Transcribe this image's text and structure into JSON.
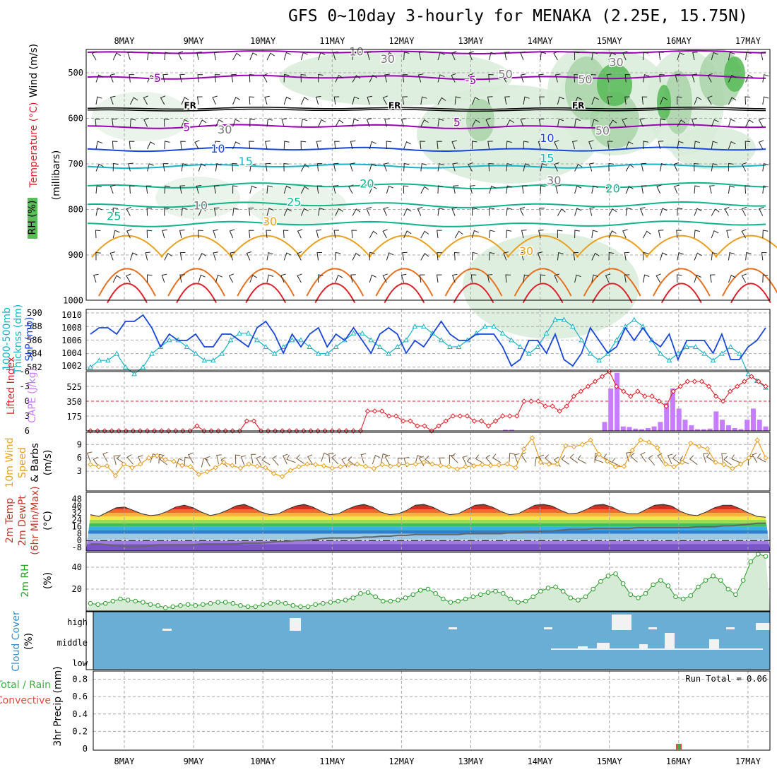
{
  "title": "GFS 0~10day 3-hourly for MENAKA (2.25E, 15.75N)",
  "days": [
    "8MAY",
    "9MAY",
    "10MAY",
    "11MAY",
    "12MAY",
    "13MAY",
    "14MAY",
    "15MAY",
    "16MAY",
    "17MAY"
  ],
  "colors": {
    "purple": "#9900b3",
    "blue": "#1946d9",
    "cyan": "#17b3c6",
    "teal": "#10b38a",
    "orange": "#e8a020",
    "red": "#e0202a",
    "green": "#2a9d2a",
    "cloud": "#6aaed6"
  },
  "panels": {
    "upper": {
      "yaxis": "(millibars)",
      "ylabels": [
        "500",
        "600",
        "700",
        "800",
        "900",
        "1000"
      ],
      "side": [
        {
          "text": "Wind (m/s)",
          "color": "#000000"
        },
        {
          "text": "Temperature (°C)",
          "color": "#e0202a"
        },
        {
          "text": "RH (%)",
          "color": "#2a9d2a"
        }
      ],
      "contour_labels": [
        {
          "t": "-5",
          "p": 520,
          "d": 1.45,
          "c": "#9900b3"
        },
        {
          "t": "-5",
          "p": 525,
          "d": 6.0,
          "c": "#9900b3"
        },
        {
          "t": "5",
          "p": 628,
          "d": 1.9,
          "c": "#9900b3"
        },
        {
          "t": "5",
          "p": 617,
          "d": 5.8,
          "c": "#9900b3"
        },
        {
          "t": "10",
          "p": 675,
          "d": 2.35,
          "c": "#1946d9"
        },
        {
          "t": "10",
          "p": 652,
          "d": 7.1,
          "c": "#1946d9"
        },
        {
          "t": "15",
          "p": 703,
          "d": 2.75,
          "c": "#17b3c6"
        },
        {
          "t": "15",
          "p": 696,
          "d": 7.1,
          "c": "#17b3c6"
        },
        {
          "t": "20",
          "p": 752,
          "d": 4.5,
          "c": "#10b38a"
        },
        {
          "t": "20",
          "p": 763,
          "d": 8.05,
          "c": "#10b38a"
        },
        {
          "t": "25",
          "p": 792,
          "d": 3.45,
          "c": "#10b38a"
        },
        {
          "t": "25",
          "p": 823,
          "d": 0.85,
          "c": "#10b38a"
        },
        {
          "t": "30",
          "p": 835,
          "d": 3.1,
          "c": "#e8a020"
        },
        {
          "t": "30",
          "p": 900,
          "d": 6.8,
          "c": "#e8a020"
        },
        {
          "t": "FR",
          "p": 578,
          "d": 1.95,
          "c": "#000000"
        },
        {
          "t": "FR",
          "p": 578,
          "d": 4.9,
          "c": "#000000"
        },
        {
          "t": "FR",
          "p": 578,
          "d": 7.55,
          "c": "#000000"
        },
        {
          "t": "10",
          "p": 462,
          "d": 4.35,
          "c": "#777777"
        },
        {
          "t": "30",
          "p": 478,
          "d": 4.8,
          "c": "#777777"
        },
        {
          "t": "30",
          "p": 485,
          "d": 8.1,
          "c": "#777777"
        },
        {
          "t": "50",
          "p": 512,
          "d": 6.5,
          "c": "#777777"
        },
        {
          "t": "50",
          "p": 523,
          "d": 7.65,
          "c": "#777777"
        },
        {
          "t": "30",
          "p": 633,
          "d": 2.45,
          "c": "#777777"
        },
        {
          "t": "50",
          "p": 636,
          "d": 7.9,
          "c": "#777777"
        },
        {
          "t": "30",
          "p": 745,
          "d": 7.2,
          "c": "#777777"
        },
        {
          "t": "10",
          "p": 800,
          "d": 2.1,
          "c": "#777777"
        }
      ]
    },
    "thick": {
      "label1": "1000-500mb",
      "label2": "Thicknss (dm)",
      "label3": "SLP (mb)",
      "left_ticks": [
        "590",
        "588",
        "586",
        "584",
        "582"
      ],
      "right_ticks": [
        "1010",
        "1008",
        "1006",
        "1004",
        "1002"
      ]
    },
    "cape": {
      "label1": "Lifted Index",
      "label2": "CAPE (J/kg)",
      "left_ticks": [
        "-6",
        "-3",
        "0",
        "3",
        "6"
      ],
      "right_ticks": [
        "525",
        "350",
        "175"
      ]
    },
    "wind": {
      "label1": "10m Wind",
      "label2": "Speed",
      "label3": "& Barbs",
      "label4": "(m/s)",
      "ticks": [
        "9",
        "6",
        "3"
      ]
    },
    "temp": {
      "label1": "2m Temp",
      "label2": "2m DewPt",
      "label3": "(6hr Min/Max)",
      "label4": "(°C)",
      "ticks": [
        "48",
        "40",
        "32",
        "24",
        "16",
        "8",
        "0",
        "-8"
      ]
    },
    "rh": {
      "label1": "2m RH",
      "label2": "(%)",
      "ticks": [
        "40",
        "20"
      ]
    },
    "cloud": {
      "label1": "Cloud Cover",
      "label2": "(%)",
      "ticks": [
        "high",
        "middle",
        "low"
      ]
    },
    "precip": {
      "label1": "Total / Rain",
      "label2": "Convective",
      "label3": "3hr Precip (mm)",
      "ticks": [
        "0.8",
        "0.6",
        "0.4",
        "0.2",
        "0"
      ],
      "run_total": "Run Total = 0.06"
    }
  },
  "chart_data": {
    "type": "line",
    "x": [
      "8MAY",
      "9MAY",
      "10MAY",
      "11MAY",
      "12MAY",
      "13MAY",
      "14MAY",
      "15MAY",
      "16MAY",
      "17MAY"
    ],
    "slp_mb": [
      1007,
      1008,
      1008,
      1007,
      1009,
      1009,
      1010,
      1008,
      1005,
      1007,
      1006,
      1006,
      1007,
      1005,
      1005,
      1007,
      1007,
      1006,
      1005,
      1008,
      1009,
      1007,
      1004,
      1007,
      1005,
      1007,
      1008,
      1005,
      1007,
      1006,
      1008,
      1006,
      1004,
      1007,
      1008,
      1007,
      1004,
      1006,
      1005,
      1007,
      1009,
      1007,
      1006,
      1006,
      1007,
      1007,
      1007,
      1005,
      1002,
      1003,
      1006,
      1006,
      1004,
      1007,
      1003,
      1002,
      1004,
      1008,
      1006,
      1004,
      1005,
      1008,
      1006,
      1008,
      1006,
      1005,
      1007,
      1003,
      1006,
      1006,
      1006,
      1004,
      1007,
      1003,
      1003,
      1005,
      1006,
      1008
    ],
    "thickness_dm": [
      582,
      583,
      583,
      584,
      582,
      581,
      582,
      584,
      585,
      586,
      586,
      585,
      584,
      583,
      583,
      584,
      586,
      587,
      587,
      586,
      585,
      584,
      585,
      586,
      586,
      585,
      584,
      584,
      585,
      586,
      587,
      587,
      586,
      585,
      584,
      585,
      586,
      588,
      588,
      587,
      586,
      585,
      585,
      586,
      587,
      588,
      588,
      587,
      586,
      585,
      584,
      585,
      587,
      589,
      589,
      588,
      586,
      584,
      583,
      584,
      586,
      588,
      589,
      588,
      586,
      584,
      583,
      584,
      585,
      585,
      584,
      583,
      584,
      585,
      584,
      581,
      580,
      579
    ],
    "lifted_index": [
      6,
      6,
      6,
      6,
      6,
      6,
      6,
      6,
      6,
      6,
      6,
      6,
      6,
      6,
      6,
      5,
      6,
      6,
      6,
      6,
      6,
      6,
      4,
      4,
      6,
      6,
      6,
      6,
      6,
      6,
      6,
      6,
      6,
      6,
      6,
      6,
      6,
      6,
      6,
      2,
      2,
      2,
      3,
      3,
      4,
      4,
      5,
      5,
      6,
      5,
      4,
      3,
      3,
      3,
      4,
      4,
      5,
      4,
      3,
      3,
      3,
      0,
      0,
      0,
      1,
      1,
      2,
      1,
      -1,
      -2,
      -3,
      -4,
      -5,
      -6,
      -3,
      -2,
      -1,
      -2,
      -1,
      -1,
      0,
      1,
      -2,
      -3,
      -4,
      -4,
      -4,
      -3,
      -1,
      0,
      -2,
      -3,
      -4,
      -5,
      -4,
      -3
    ],
    "cape_jkg": [
      0,
      0,
      0,
      0,
      0,
      0,
      0,
      0,
      0,
      0,
      0,
      0,
      0,
      0,
      0,
      0,
      0,
      0,
      0,
      0,
      0,
      0,
      0,
      0,
      0,
      0,
      0,
      0,
      0,
      0,
      0,
      0,
      0,
      0,
      0,
      0,
      0,
      0,
      0,
      0,
      0,
      0,
      0,
      0,
      0,
      0,
      0,
      0,
      0,
      0,
      0,
      0,
      0,
      0,
      0,
      0,
      0,
      0,
      0,
      0,
      0,
      0,
      0,
      0,
      0,
      0,
      0,
      10,
      10,
      0,
      0,
      0,
      0,
      0,
      0,
      0,
      0,
      0,
      0,
      0,
      0,
      0,
      0,
      80,
      380,
      520,
      40,
      35,
      20,
      15,
      25,
      40,
      80,
      250,
      380,
      200,
      100,
      50,
      15,
      15,
      20,
      175,
      100,
      50,
      25,
      15,
      100,
      200,
      100,
      40
    ],
    "wind_speed_ms": [
      4.5,
      4.0,
      4.2,
      2.0,
      4.6,
      3.8,
      4.6,
      6.0,
      6.5,
      5.6,
      5.2,
      4.3,
      4.0,
      2.3,
      2.9,
      3.8,
      5.0,
      4.3,
      3.7,
      4.6,
      4.1,
      3.8,
      2.5,
      1.8,
      3.2,
      4.0,
      4.6,
      4.5,
      4.2,
      3.7,
      4.0,
      4.5,
      4.6,
      4.1,
      3.6,
      4.5,
      4.1,
      4.5,
      4.5,
      4.6,
      5.0,
      4.6,
      4.3,
      4.0,
      3.5,
      4.0,
      4.2,
      4.5,
      4.3,
      4.4,
      4.6,
      3.8,
      8.0,
      10.5,
      5.0,
      4.6,
      4.6,
      8.7,
      8.5,
      9.0,
      10.0,
      6.8,
      5.2,
      4.0,
      4.1,
      7.7,
      10.0,
      9.5,
      8.3,
      4.6,
      4.0,
      5.0,
      9.3,
      8.6,
      8.0,
      5.0,
      4.5,
      3.6,
      4.6,
      6.0,
      10.0,
      6.0
    ],
    "temp_c": [
      30,
      28,
      33,
      38,
      39,
      35,
      31,
      29,
      30,
      34,
      39,
      41,
      38,
      33,
      29,
      31,
      35,
      40,
      42,
      38,
      33,
      30,
      31,
      36,
      40,
      42,
      39,
      34,
      30,
      31,
      36,
      40,
      42,
      39,
      33,
      30,
      31,
      35,
      41,
      42,
      39,
      34,
      30,
      31,
      36,
      41,
      42,
      39,
      34,
      30,
      31,
      36,
      41,
      42,
      40,
      35,
      31,
      32,
      36,
      41,
      42,
      39,
      34,
      31,
      31,
      36,
      41,
      42,
      40,
      34,
      30,
      29,
      33,
      38,
      41,
      41,
      37,
      32,
      28,
      27
    ],
    "dewpt_c": [
      -4,
      -4,
      -5,
      -6,
      -7,
      -7,
      -7,
      -6,
      -5,
      -5,
      -5,
      -5,
      -5,
      -4,
      -4,
      -4,
      -4,
      -4,
      -3,
      -3,
      -3,
      -2,
      -1,
      -1,
      0,
      0,
      1,
      2,
      3,
      3,
      3,
      3,
      4,
      4,
      5,
      5,
      6,
      6,
      7,
      7,
      7,
      7,
      7,
      7,
      8,
      8,
      8,
      8,
      8,
      9,
      9,
      10,
      10,
      11,
      11,
      12,
      13,
      13,
      13,
      14,
      14,
      14,
      14,
      14,
      15,
      15,
      15,
      15,
      15,
      15,
      15,
      16,
      16,
      16,
      17,
      17,
      18,
      19,
      20,
      20
    ],
    "rh_pct": [
      7,
      6,
      7,
      9,
      11,
      10,
      9,
      8,
      6,
      5,
      3,
      4,
      5,
      6,
      5,
      6,
      7,
      8,
      8,
      7,
      5,
      4,
      4,
      6,
      7,
      8,
      7,
      5,
      4,
      4,
      6,
      7,
      8,
      9,
      10,
      12,
      16,
      17,
      13,
      9,
      9,
      10,
      12,
      15,
      19,
      20,
      16,
      11,
      8,
      9,
      11,
      13,
      15,
      17,
      18,
      16,
      11,
      8,
      9,
      13,
      18,
      21,
      22,
      18,
      12,
      10,
      13,
      20,
      27,
      32,
      34,
      25,
      15,
      12,
      16,
      24,
      28,
      23,
      13,
      11,
      14,
      22,
      28,
      32,
      28,
      20,
      15,
      28,
      45,
      52,
      50
    ]
  }
}
